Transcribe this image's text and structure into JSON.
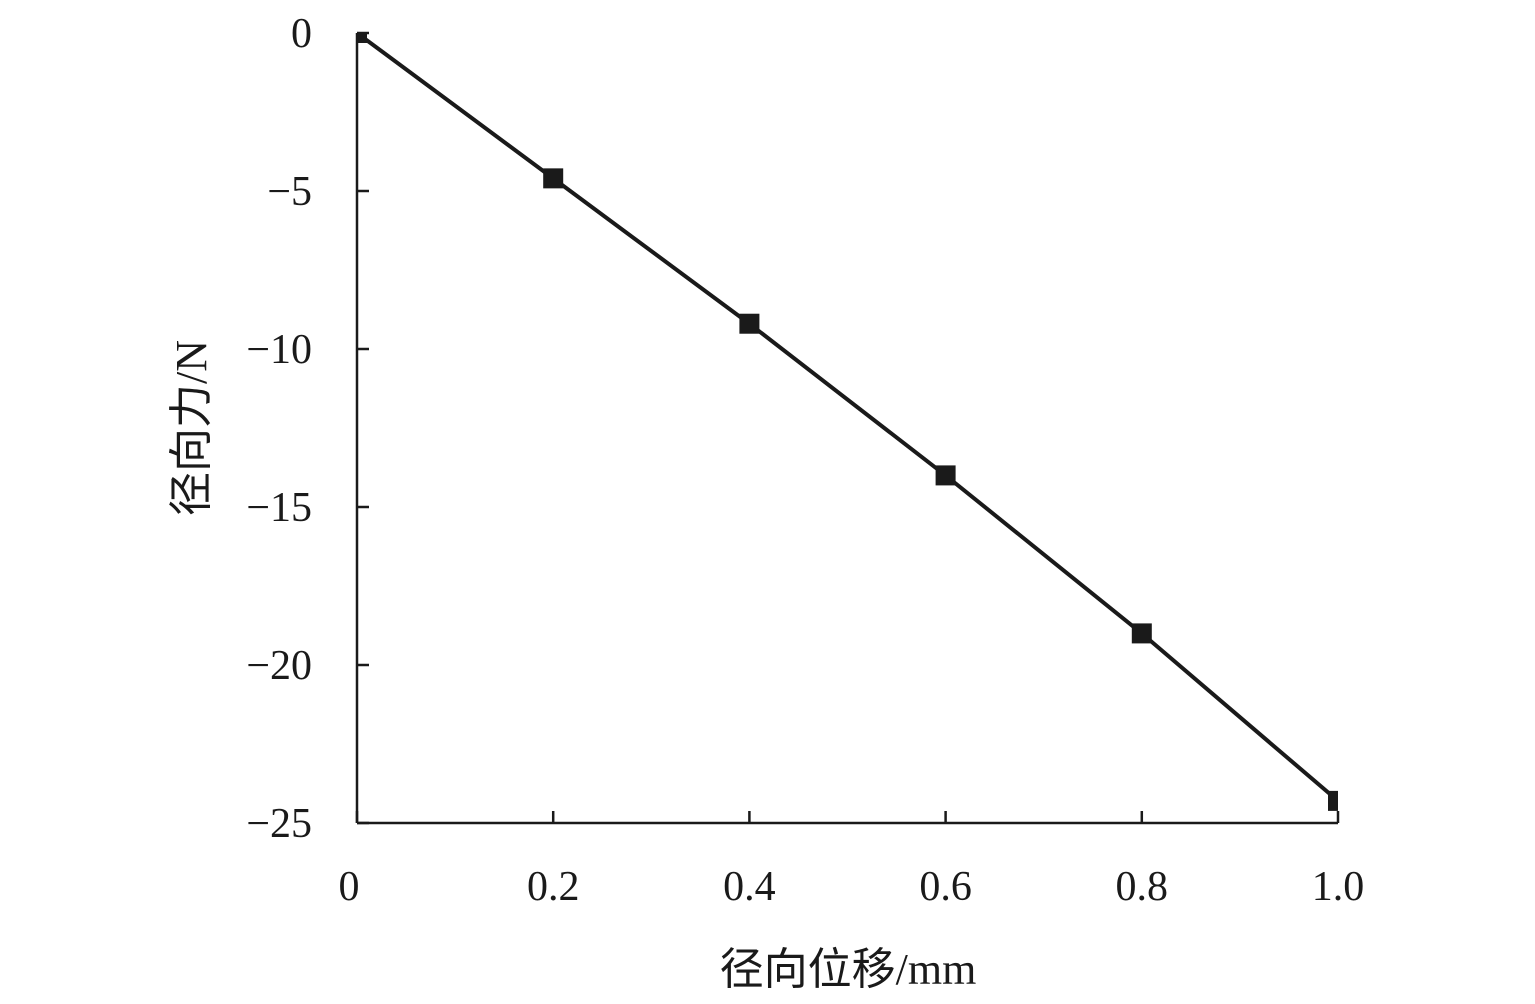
{
  "chart_data": {
    "type": "line",
    "title": "",
    "xlabel": "径向位移/mm",
    "ylabel": "径向力/N",
    "xlim": [
      0,
      1.0
    ],
    "ylim": [
      -25,
      0
    ],
    "x_ticks": [
      0,
      0.2,
      0.4,
      0.6,
      0.8,
      1.0
    ],
    "x_tick_labels": [
      "0",
      "0.2",
      "0.4",
      "0.6",
      "0.8",
      "1.0"
    ],
    "y_ticks": [
      0,
      -5,
      -10,
      -15,
      -20,
      -25
    ],
    "y_tick_labels": [
      "0",
      "−5",
      "−10",
      "−15",
      "−20",
      "−25"
    ],
    "grid": false,
    "legend": "none",
    "series": [
      {
        "marker": "square",
        "color": "#1a1a1a",
        "x": [
          0,
          0.2,
          0.4,
          0.6,
          0.8,
          1.0
        ],
        "y": [
          0,
          -4.6,
          -9.2,
          -14.0,
          -19.0,
          -24.3
        ]
      }
    ]
  }
}
